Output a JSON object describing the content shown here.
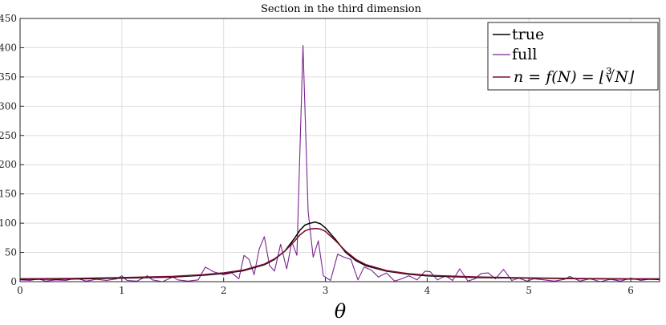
{
  "chart_data": {
    "type": "line",
    "title": "Section in the third dimension",
    "xlabel": "θ",
    "ylabel": "",
    "xlim": [
      0,
      6.2832
    ],
    "ylim": [
      0,
      450
    ],
    "xticks": [
      "0",
      "1",
      "2",
      "3",
      "4",
      "5",
      "6"
    ],
    "yticks": [
      "0",
      "50",
      "100",
      "150",
      "200",
      "250",
      "300",
      "350",
      "400",
      "450"
    ],
    "grid": true,
    "legend_position": "top-right",
    "colors": {
      "true": "#000000",
      "full": "#7b2590",
      "reduced": "#7a1230"
    },
    "series": [
      {
        "name": "true",
        "x": [
          0,
          0.5,
          1.0,
          1.5,
          1.8,
          2.0,
          2.2,
          2.4,
          2.5,
          2.6,
          2.7,
          2.75,
          2.8,
          2.85,
          2.9,
          2.95,
          3.0,
          3.1,
          3.2,
          3.3,
          3.4,
          3.6,
          3.8,
          4.0,
          4.5,
          5.0,
          5.5,
          6.0,
          6.2832
        ],
        "y": [
          4,
          4.5,
          6,
          8,
          11,
          14,
          19,
          29,
          38,
          52,
          75,
          88,
          97,
          100,
          102,
          99,
          92,
          72,
          50,
          36,
          27,
          18,
          13,
          10,
          7,
          6,
          5,
          4.5,
          4
        ]
      },
      {
        "name": "full",
        "x": [
          0,
          0.1,
          0.18,
          0.25,
          0.35,
          0.45,
          0.55,
          0.65,
          0.75,
          0.85,
          0.95,
          1.0,
          1.05,
          1.15,
          1.25,
          1.3,
          1.4,
          1.5,
          1.55,
          1.65,
          1.75,
          1.82,
          1.9,
          2.0,
          2.08,
          2.15,
          2.2,
          2.25,
          2.3,
          2.35,
          2.4,
          2.45,
          2.5,
          2.56,
          2.62,
          2.67,
          2.72,
          2.78,
          2.83,
          2.88,
          2.93,
          2.98,
          3.05,
          3.12,
          3.18,
          3.25,
          3.32,
          3.38,
          3.45,
          3.52,
          3.6,
          3.68,
          3.75,
          3.82,
          3.9,
          3.98,
          4.03,
          4.1,
          4.18,
          4.25,
          4.32,
          4.4,
          4.47,
          4.53,
          4.6,
          4.67,
          4.75,
          4.83,
          4.9,
          4.98,
          5.05,
          5.15,
          5.25,
          5.35,
          5.4,
          5.5,
          5.6,
          5.7,
          5.8,
          5.9,
          6.0,
          6.1,
          6.2,
          6.2832
        ],
        "y": [
          3,
          2,
          5,
          1,
          3,
          2,
          6,
          1,
          4,
          2,
          5,
          10,
          2,
          1,
          10,
          3,
          0,
          8,
          3,
          1,
          3,
          25,
          17,
          12,
          15,
          5,
          45,
          38,
          12,
          56,
          77,
          28,
          18,
          64,
          22,
          68,
          45,
          404,
          120,
          42,
          70,
          10,
          2,
          47,
          42,
          38,
          3,
          25,
          20,
          8,
          15,
          1,
          5,
          10,
          3,
          18,
          17,
          3,
          10,
          2,
          22,
          1,
          5,
          14,
          15,
          5,
          21,
          2,
          6,
          1,
          5,
          3,
          1,
          4,
          9,
          1,
          5,
          0,
          4,
          1,
          6,
          2,
          5,
          3
        ]
      },
      {
        "name": "n = f(N) = ⌊∛N⌋",
        "x": [
          0,
          0.5,
          1.0,
          1.5,
          1.8,
          2.0,
          2.2,
          2.4,
          2.5,
          2.6,
          2.7,
          2.75,
          2.8,
          2.85,
          2.9,
          2.95,
          3.0,
          3.1,
          3.2,
          3.3,
          3.4,
          3.6,
          3.8,
          4.0,
          4.5,
          5.0,
          5.5,
          6.0,
          6.2832
        ],
        "y": [
          5,
          5.5,
          7,
          9,
          12,
          15,
          20,
          30,
          39,
          52,
          70,
          80,
          87,
          90,
          91,
          90,
          86,
          70,
          52,
          38,
          29,
          19,
          14,
          11,
          8,
          6.5,
          5.5,
          5,
          5
        ]
      }
    ]
  }
}
